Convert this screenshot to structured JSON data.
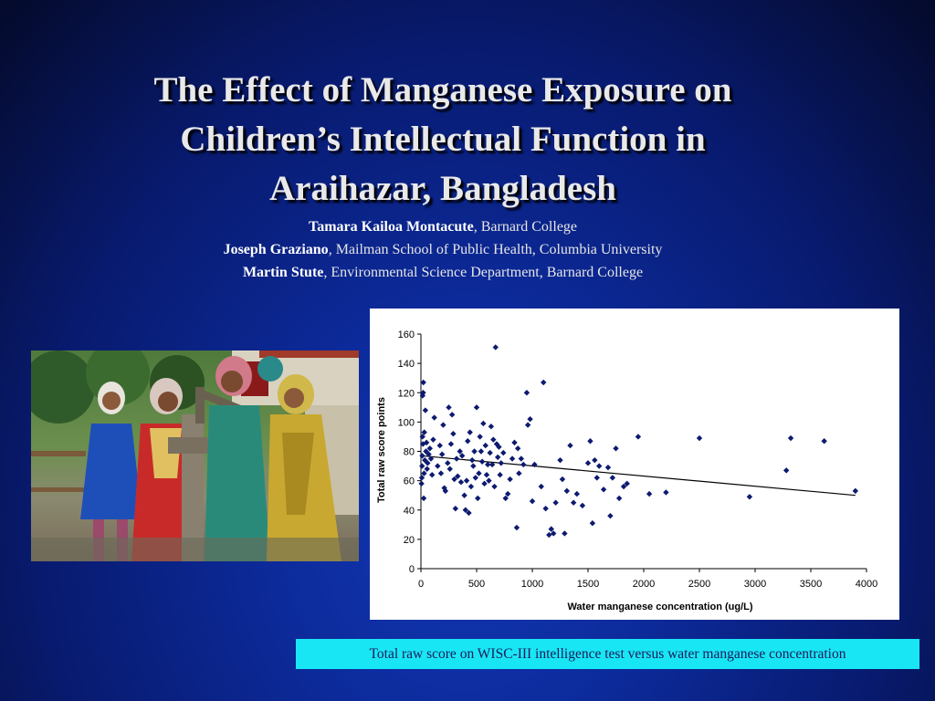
{
  "title_lines": [
    "The Effect of Manganese Exposure on",
    "Children’s Intellectual Function in",
    "Araihazar, Bangladesh"
  ],
  "authors": [
    {
      "name": "Tamara Kailoa Montacute",
      "affiliation": ", Barnard College"
    },
    {
      "name": "Joseph Graziano",
      "affiliation": ", Mailman School of Public Health, Columbia University"
    },
    {
      "name": "Martin Stute",
      "affiliation": ", Environmental Science Department, Barnard College"
    }
  ],
  "caption": "Total raw score on WISC-III intelligence test versus water manganese concentration",
  "colors": {
    "point": "#0d1a70",
    "trendline": "#000000",
    "caption_background": "#19e6f5"
  },
  "chart_data": {
    "type": "scatter",
    "title": "",
    "xlabel": "Water manganese concentration (ug/L)",
    "ylabel": "Total raw score points",
    "xlim": [
      0,
      4000
    ],
    "ylim": [
      0,
      160
    ],
    "xticks": [
      0,
      500,
      1000,
      1500,
      2000,
      2500,
      3000,
      3500,
      4000
    ],
    "yticks": [
      0,
      20,
      40,
      60,
      80,
      100,
      120,
      140,
      160
    ],
    "grid": false,
    "legend": "none",
    "trendline": {
      "x": [
        0,
        3900
      ],
      "y": [
        77,
        50
      ]
    },
    "points": [
      [
        5,
        58
      ],
      [
        8,
        62
      ],
      [
        10,
        70
      ],
      [
        12,
        77
      ],
      [
        14,
        90
      ],
      [
        15,
        118
      ],
      [
        18,
        85
      ],
      [
        20,
        120
      ],
      [
        22,
        127
      ],
      [
        25,
        48
      ],
      [
        28,
        65
      ],
      [
        30,
        93
      ],
      [
        35,
        74
      ],
      [
        40,
        108
      ],
      [
        45,
        80
      ],
      [
        50,
        86
      ],
      [
        55,
        68
      ],
      [
        60,
        72
      ],
      [
        70,
        78
      ],
      [
        80,
        82
      ],
      [
        90,
        75
      ],
      [
        100,
        64
      ],
      [
        110,
        88
      ],
      [
        120,
        103
      ],
      [
        150,
        70
      ],
      [
        170,
        84
      ],
      [
        180,
        65
      ],
      [
        190,
        78
      ],
      [
        200,
        98
      ],
      [
        210,
        55
      ],
      [
        220,
        53
      ],
      [
        240,
        72
      ],
      [
        250,
        110
      ],
      [
        260,
        68
      ],
      [
        270,
        85
      ],
      [
        280,
        105
      ],
      [
        290,
        92
      ],
      [
        300,
        61
      ],
      [
        310,
        41
      ],
      [
        320,
        75
      ],
      [
        330,
        63
      ],
      [
        350,
        80
      ],
      [
        360,
        59
      ],
      [
        370,
        77
      ],
      [
        390,
        50
      ],
      [
        400,
        40
      ],
      [
        410,
        60
      ],
      [
        420,
        87
      ],
      [
        430,
        38
      ],
      [
        440,
        93
      ],
      [
        450,
        56
      ],
      [
        460,
        74
      ],
      [
        470,
        70
      ],
      [
        480,
        80
      ],
      [
        490,
        62
      ],
      [
        500,
        110
      ],
      [
        510,
        48
      ],
      [
        520,
        65
      ],
      [
        530,
        90
      ],
      [
        540,
        80
      ],
      [
        550,
        73
      ],
      [
        560,
        99
      ],
      [
        570,
        58
      ],
      [
        580,
        84
      ],
      [
        590,
        64
      ],
      [
        600,
        71
      ],
      [
        610,
        60
      ],
      [
        620,
        79
      ],
      [
        630,
        97
      ],
      [
        640,
        71
      ],
      [
        650,
        88
      ],
      [
        660,
        56
      ],
      [
        670,
        151
      ],
      [
        680,
        85
      ],
      [
        690,
        76
      ],
      [
        700,
        83
      ],
      [
        710,
        64
      ],
      [
        720,
        72
      ],
      [
        740,
        79
      ],
      [
        760,
        48
      ],
      [
        780,
        51
      ],
      [
        800,
        61
      ],
      [
        820,
        75
      ],
      [
        840,
        86
      ],
      [
        860,
        28
      ],
      [
        870,
        82
      ],
      [
        880,
        65
      ],
      [
        900,
        75
      ],
      [
        920,
        71
      ],
      [
        950,
        120
      ],
      [
        960,
        98
      ],
      [
        980,
        102
      ],
      [
        1000,
        46
      ],
      [
        1020,
        71
      ],
      [
        1080,
        56
      ],
      [
        1100,
        127
      ],
      [
        1120,
        41
      ],
      [
        1150,
        23
      ],
      [
        1170,
        27
      ],
      [
        1190,
        24
      ],
      [
        1210,
        45
      ],
      [
        1250,
        74
      ],
      [
        1270,
        61
      ],
      [
        1290,
        24
      ],
      [
        1310,
        53
      ],
      [
        1340,
        84
      ],
      [
        1370,
        45
      ],
      [
        1400,
        51
      ],
      [
        1450,
        43
      ],
      [
        1500,
        72
      ],
      [
        1520,
        87
      ],
      [
        1540,
        31
      ],
      [
        1560,
        74
      ],
      [
        1580,
        62
      ],
      [
        1600,
        70
      ],
      [
        1640,
        54
      ],
      [
        1680,
        69
      ],
      [
        1700,
        36
      ],
      [
        1720,
        62
      ],
      [
        1750,
        82
      ],
      [
        1780,
        48
      ],
      [
        1820,
        56
      ],
      [
        1850,
        58
      ],
      [
        1950,
        90
      ],
      [
        2050,
        51
      ],
      [
        2200,
        52
      ],
      [
        2500,
        89
      ],
      [
        2950,
        49
      ],
      [
        3280,
        67
      ],
      [
        3320,
        89
      ],
      [
        3620,
        87
      ],
      [
        3900,
        53
      ]
    ]
  }
}
